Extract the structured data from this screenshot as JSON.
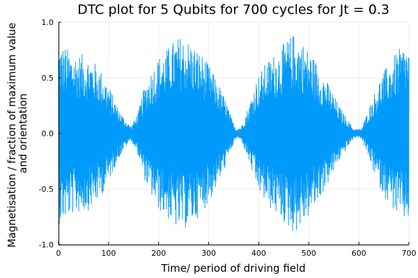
{
  "chart_data": {
    "type": "line",
    "title": "DTC plot for 5 Qubits for 700 cycles for Jt = 0.3",
    "xlabel": "Time/ period of driving field",
    "ylabel_lines": [
      "Magnetisation / fraction of maximum value",
      "and orientation"
    ],
    "xlim": [
      0,
      700
    ],
    "ylim": [
      -1.0,
      1.0
    ],
    "xticks": [
      0,
      100,
      200,
      300,
      400,
      500,
      600,
      700
    ],
    "xtick_labels": [
      "0",
      "100",
      "200",
      "300",
      "400",
      "500",
      "600",
      "700"
    ],
    "yticks": [
      -1.0,
      -0.5,
      0.0,
      0.5,
      1.0
    ],
    "ytick_labels": [
      "-1.0",
      "-0.5",
      "0.0",
      "0.5",
      "1.0"
    ],
    "grid": true,
    "legend": "none",
    "series": [
      {
        "color": "#009AFA",
        "envelope": {
          "x": [
            0,
            10,
            25,
            45,
            60,
            80,
            100,
            115,
            130,
            145,
            160,
            170,
            185,
            200,
            215,
            230,
            245,
            260,
            275,
            290,
            305,
            320,
            335,
            345,
            355,
            365,
            380,
            395,
            410,
            425,
            440,
            455,
            470,
            485,
            500,
            515,
            530,
            545,
            560,
            575,
            590,
            605,
            615,
            630,
            645,
            660,
            675,
            690,
            700
          ],
          "amplitude": [
            0.78,
            0.76,
            0.7,
            0.68,
            0.66,
            0.58,
            0.42,
            0.26,
            0.14,
            0.06,
            0.2,
            0.38,
            0.54,
            0.66,
            0.72,
            0.8,
            0.84,
            0.8,
            0.74,
            0.66,
            0.56,
            0.42,
            0.28,
            0.14,
            0.04,
            0.06,
            0.24,
            0.46,
            0.58,
            0.66,
            0.72,
            0.8,
            0.86,
            0.8,
            0.72,
            0.62,
            0.5,
            0.38,
            0.24,
            0.14,
            0.04,
            0.04,
            0.16,
            0.34,
            0.5,
            0.6,
            0.7,
            0.76,
            0.74
          ]
        }
      }
    ]
  }
}
